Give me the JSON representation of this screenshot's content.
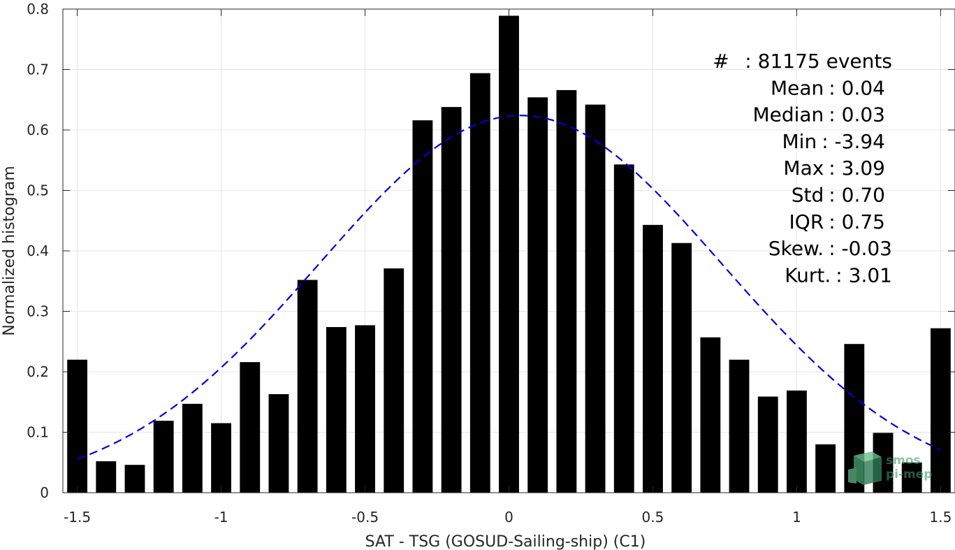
{
  "chart_data": {
    "type": "bar",
    "xlabel": "SAT - TSG (GOSUD-Sailing-ship) (C1)",
    "ylabel": "Normalized histogram",
    "xlim": [
      -1.55,
      1.55
    ],
    "ylim": [
      0,
      0.8
    ],
    "xticks": [
      -1.5,
      -1,
      -0.5,
      0,
      0.5,
      1,
      1.5
    ],
    "xtick_labels": [
      "-1.5",
      "-1",
      "-0.5",
      "0",
      "0.5",
      "1",
      "1.5"
    ],
    "yticks": [
      0,
      0.1,
      0.2,
      0.3,
      0.4,
      0.5,
      0.6,
      0.7,
      0.8
    ],
    "ytick_labels": [
      "0",
      "0.1",
      "0.2",
      "0.3",
      "0.4",
      "0.5",
      "0.6",
      "0.7",
      "0.8"
    ],
    "grid": true,
    "bar_color": "#000000",
    "bin_width": 0.1,
    "x": [
      -1.5,
      -1.4,
      -1.3,
      -1.2,
      -1.1,
      -1.0,
      -0.9,
      -0.8,
      -0.7,
      -0.6,
      -0.5,
      -0.4,
      -0.3,
      -0.2,
      -0.1,
      0.0,
      0.1,
      0.2,
      0.3,
      0.4,
      0.5,
      0.6,
      0.7,
      0.8,
      0.9,
      1.0,
      1.1,
      1.2,
      1.3,
      1.4,
      1.5
    ],
    "values": [
      0.22,
      0.052,
      0.046,
      0.119,
      0.147,
      0.115,
      0.216,
      0.163,
      0.352,
      0.274,
      0.277,
      0.371,
      0.616,
      0.638,
      0.694,
      0.789,
      0.654,
      0.666,
      0.642,
      0.543,
      0.443,
      0.413,
      0.257,
      0.22,
      0.159,
      0.169,
      0.08,
      0.246,
      0.099,
      0.05,
      0.272
    ],
    "fit_curve": {
      "type": "gaussian",
      "color": "#0000dd",
      "style": "dashed",
      "mean": 0.04,
      "std": 0.7,
      "peak": 0.624,
      "x_range": [
        -1.5,
        1.5
      ]
    },
    "annotations": [
      {
        "label": "#",
        "value": ": 81175 events"
      },
      {
        "label": "Mean",
        "value": ": 0.04"
      },
      {
        "label": "Median",
        "value": ": 0.03"
      },
      {
        "label": "Min",
        "value": ": -3.94"
      },
      {
        "label": "Max",
        "value": ": 3.09"
      },
      {
        "label": "Std",
        "value": ": 0.70"
      },
      {
        "label": "IQR",
        "value": ": 0.75"
      },
      {
        "label": "Skew.",
        "value": ": -0.03"
      },
      {
        "label": "Kurt.",
        "value": ": 3.01"
      }
    ]
  },
  "logo": {
    "line1": "smos",
    "line2": "pi-mep",
    "icon": "cube-logo-icon",
    "color": "#3f9a6a"
  }
}
